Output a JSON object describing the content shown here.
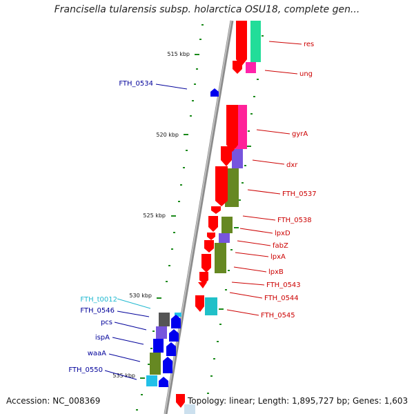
{
  "title": "Francisella tularensis subsp. holarctica OSU18, complete gen...",
  "footer": {
    "accession": "Accession: NC_008369",
    "topology": "Topology: linear; Length: 1,895,727 bp; Genes: 1,603"
  },
  "kbp_ticks": [
    "515 kbp",
    "520 kbp",
    "525 kbp",
    "530 kbp",
    "535 kbp"
  ],
  "colors": {
    "forward_strand": "#ff0000",
    "reverse_strand": "#0000ee",
    "trna": "#22c0d8",
    "label_red": "#cc0000",
    "label_blue": "#00009a",
    "label_cyan": "#20b8d0",
    "tick": "#1a8a1a",
    "backbone": "#8c8c8c"
  },
  "genes_right": [
    "res",
    "ung",
    "gyrA",
    "dxr",
    "FTH_0537",
    "FTH_0538",
    "lpxD",
    "fabZ",
    "lpxA",
    "lpxB",
    "FTH_0543",
    "FTH_0544",
    "FTH_0545"
  ],
  "genes_left": [
    "FTH_0534",
    "FTH_t0012",
    "FTH_0546",
    "pcs",
    "ispA",
    "waaA",
    "FTH_0550"
  ]
}
